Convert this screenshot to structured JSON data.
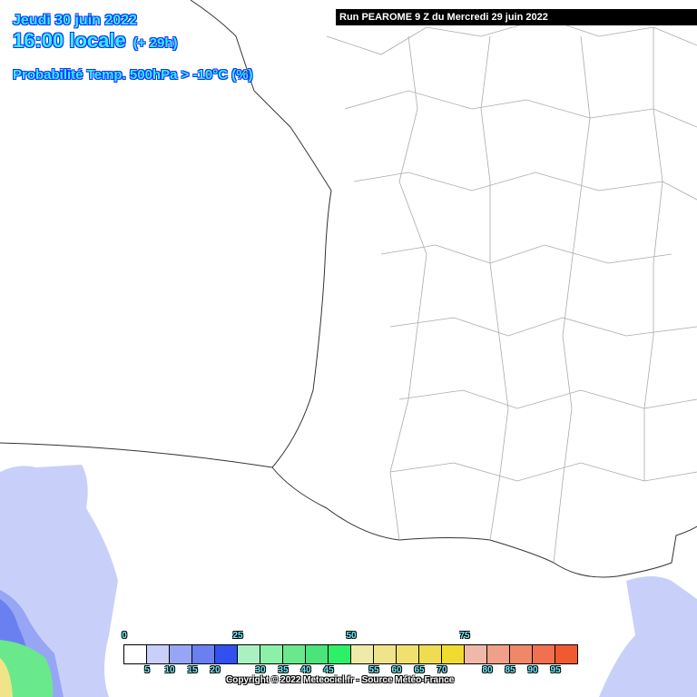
{
  "header": {
    "date": "Jeudi 30 juin 2022",
    "time": "16:00 locale",
    "lead": "(+ 29h)",
    "parameter": "Probabilité Temp. 500hPa > -10°C (%)"
  },
  "run_label": "Run PEAROME 9 Z du Mercredi 29 juin 2022",
  "legend": {
    "colors": [
      "#ffffff",
      "#c8d0fa",
      "#96a6f5",
      "#6a80f0",
      "#3250f0",
      "#aaf0c0",
      "#8cf0a8",
      "#6ae88c",
      "#4ae47a",
      "#2ef066",
      "#f0eaa8",
      "#f0e48a",
      "#f0e070",
      "#f0dc50",
      "#f0dc30",
      "#f0b8a8",
      "#f0a088",
      "#f08868",
      "#f07050",
      "#f05a30"
    ],
    "top_labels": [
      "0",
      "25",
      "50",
      "75"
    ],
    "bottom_labels": [
      "5",
      "10",
      "15",
      "20",
      "30",
      "35",
      "40",
      "45",
      "55",
      "60",
      "65",
      "70",
      "80",
      "85",
      "90",
      "95"
    ]
  },
  "copyright": "Copyright © 2022 Meteociel.fr - Source Météo-France"
}
